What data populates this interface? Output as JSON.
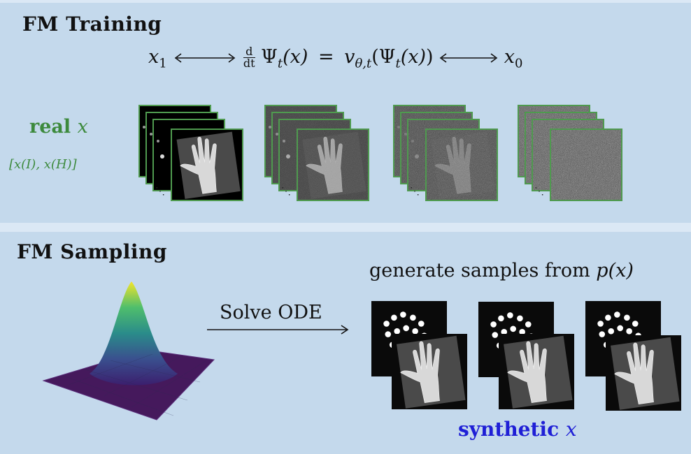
{
  "training": {
    "title": "FM Training",
    "equation": {
      "left": "x",
      "left_sub": "1",
      "frac_num": "d",
      "frac_den": "dt",
      "psi": "Ψ",
      "sub_t": "t",
      "arg": "(x)",
      "eq": "=",
      "v": "v",
      "v_sub": "θ,t",
      "right": "x",
      "right_sub": "0",
      "open_paren": "(",
      "close_paren": ")"
    },
    "real_word": "real",
    "real_var": "x",
    "real_sub": "[x(I), x(H)]",
    "ellipsis": "⋱",
    "noise_levels": [
      0.0,
      0.35,
      0.65,
      1.0
    ]
  },
  "sampling": {
    "title": "FM Sampling",
    "arrow_label": "Solve ODE",
    "generate_text": "generate samples from",
    "generate_formula": "p(x)",
    "synthetic_word": "synthetic",
    "synthetic_var": "x"
  },
  "colors": {
    "panel_bg": "#c4d9ec",
    "gap_bg": "#dbe8f5",
    "green": "#3d8a3d",
    "frame_border": "#4f9a4f",
    "blue": "#1f1fd6"
  }
}
